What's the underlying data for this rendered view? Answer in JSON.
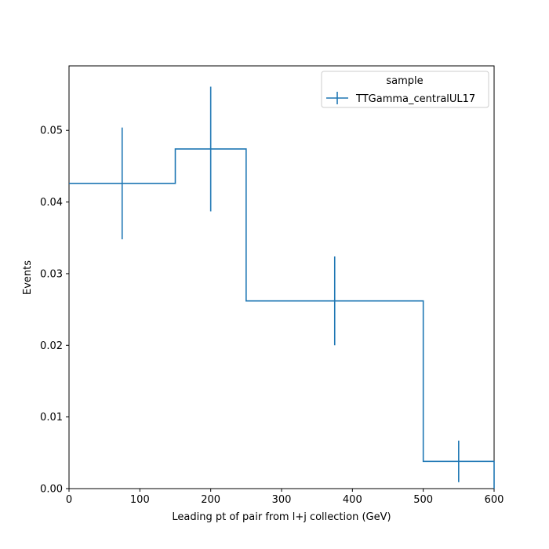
{
  "chart_data": {
    "type": "line",
    "title": "",
    "xlabel": "Leading pt of pair from l+j collection (GeV)",
    "ylabel": "Events",
    "xlim": [
      0,
      600
    ],
    "ylim": [
      0,
      0.059
    ],
    "xticks": [
      "0",
      "100",
      "200",
      "300",
      "400",
      "500",
      "600"
    ],
    "yticks": [
      "0.00",
      "0.01",
      "0.02",
      "0.03",
      "0.04",
      "0.05"
    ],
    "grid": false,
    "legend": {
      "title": "sample",
      "placement": "top-right"
    },
    "series": [
      {
        "name": "TTGamma_centralUL17",
        "color": "#1f77b4",
        "bin_edges": [
          0,
          150,
          250,
          500,
          600
        ],
        "values": [
          0.0426,
          0.0474,
          0.0262,
          0.0038
        ],
        "errors": [
          0.0078,
          0.0087,
          0.0062,
          0.0029
        ]
      }
    ]
  }
}
